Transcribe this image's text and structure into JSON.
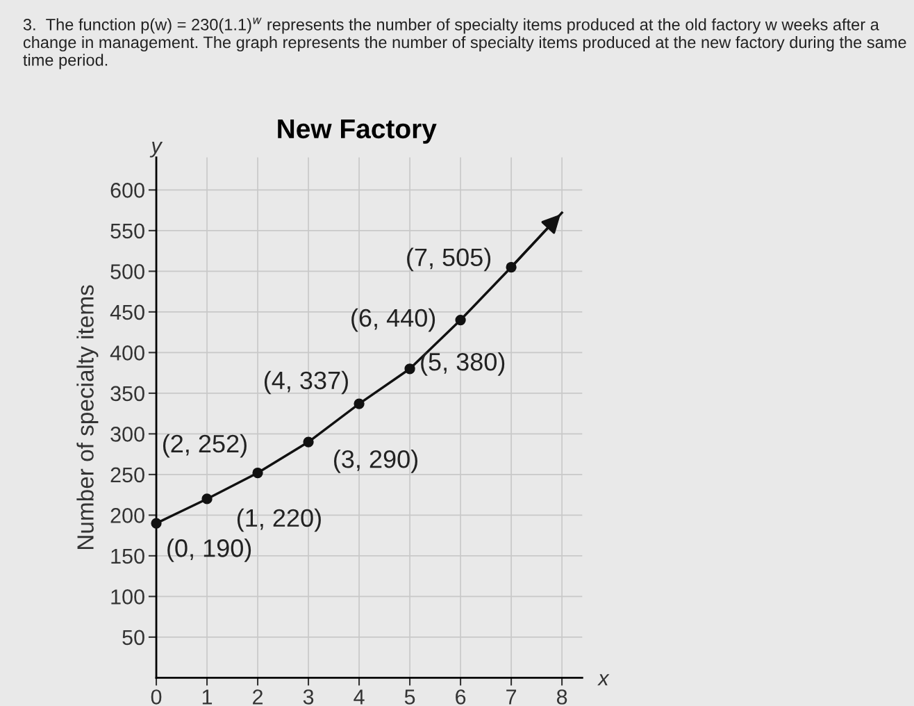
{
  "chart_data": {
    "type": "line",
    "title": "New Factory",
    "subtitle": "3.  The function p(w) = 230(1.1)$^{w}$ represents the number of specialty items produced at the old factory w weeks after a change in management. The graph represents the number of specialty items produced at the new factory during the same time period.",
    "xlabel": "x",
    "ylabel": "Number of specialty items",
    "annotations": [
      "y"
    ],
    "series": [
      {
        "color": "#111111",
        "marker": "circle",
        "x": [
          0,
          1,
          2,
          3,
          4,
          5,
          6,
          7
        ],
        "values": [
          190,
          220,
          252,
          290,
          337,
          380,
          440,
          505
        ],
        "value_labels": [
          "(0, 190)",
          "(1, 220)",
          "(2, 252)",
          "(3, 290)",
          "(4, 337)",
          "(5, 380)",
          "(6, 440)",
          "(7, 505)"
        ]
      },
      {
        "color": "#111111",
        "marker": "none",
        "x": [
          7,
          8
        ],
        "values": [
          505,
          572
        ]
      }
    ],
    "xlim": [
      0,
      8.4
    ],
    "ylim": [
      0,
      640
    ],
    "xticks": [
      0,
      1,
      2,
      3,
      4,
      5,
      6,
      7,
      8
    ],
    "yticks": [
      50,
      100,
      150,
      200,
      250,
      300,
      350,
      400,
      450,
      500,
      550,
      600
    ],
    "grid": true,
    "legend": false
  }
}
